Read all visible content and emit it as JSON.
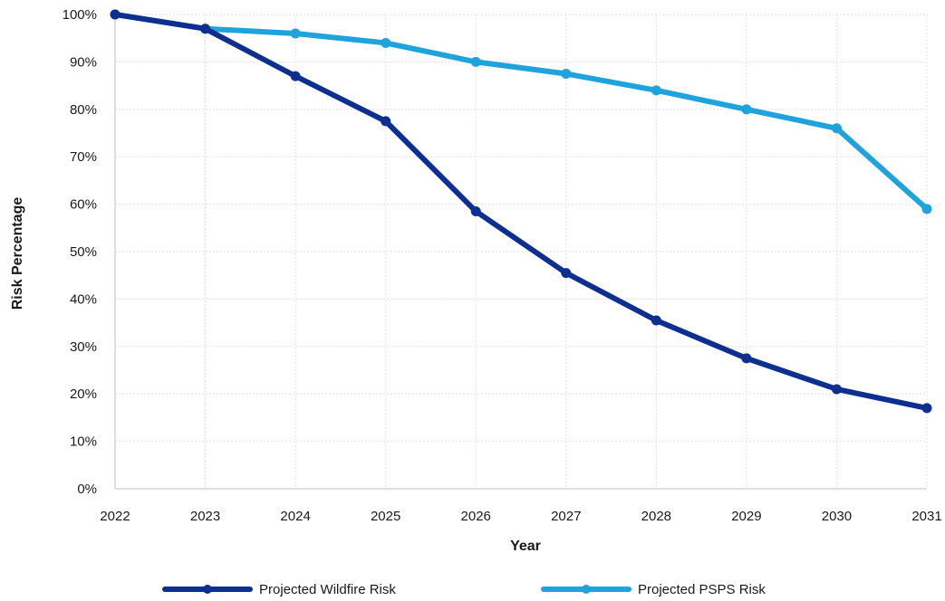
{
  "chart_data": {
    "type": "line",
    "title": "",
    "xlabel": "Year",
    "ylabel": "Risk Percentage",
    "x": [
      "2022",
      "2023",
      "2024",
      "2025",
      "2026",
      "2027",
      "2028",
      "2029",
      "2030",
      "2031"
    ],
    "ylim": [
      0,
      100
    ],
    "yticks": [
      "0%",
      "10%",
      "20%",
      "30%",
      "40%",
      "50%",
      "60%",
      "70%",
      "80%",
      "90%",
      "100%"
    ],
    "grid": true,
    "legend_position": "bottom",
    "series": [
      {
        "name": "Projected Wildfire Risk",
        "color": "#0d2f8f",
        "values": [
          100,
          97,
          87,
          77.5,
          58.5,
          45.5,
          35.5,
          27.5,
          21,
          17
        ]
      },
      {
        "name": "Projected PSPS Risk",
        "color": "#1fa3dc",
        "values": [
          100,
          97,
          96,
          94,
          90,
          87.5,
          84,
          80,
          76,
          59
        ]
      }
    ]
  }
}
